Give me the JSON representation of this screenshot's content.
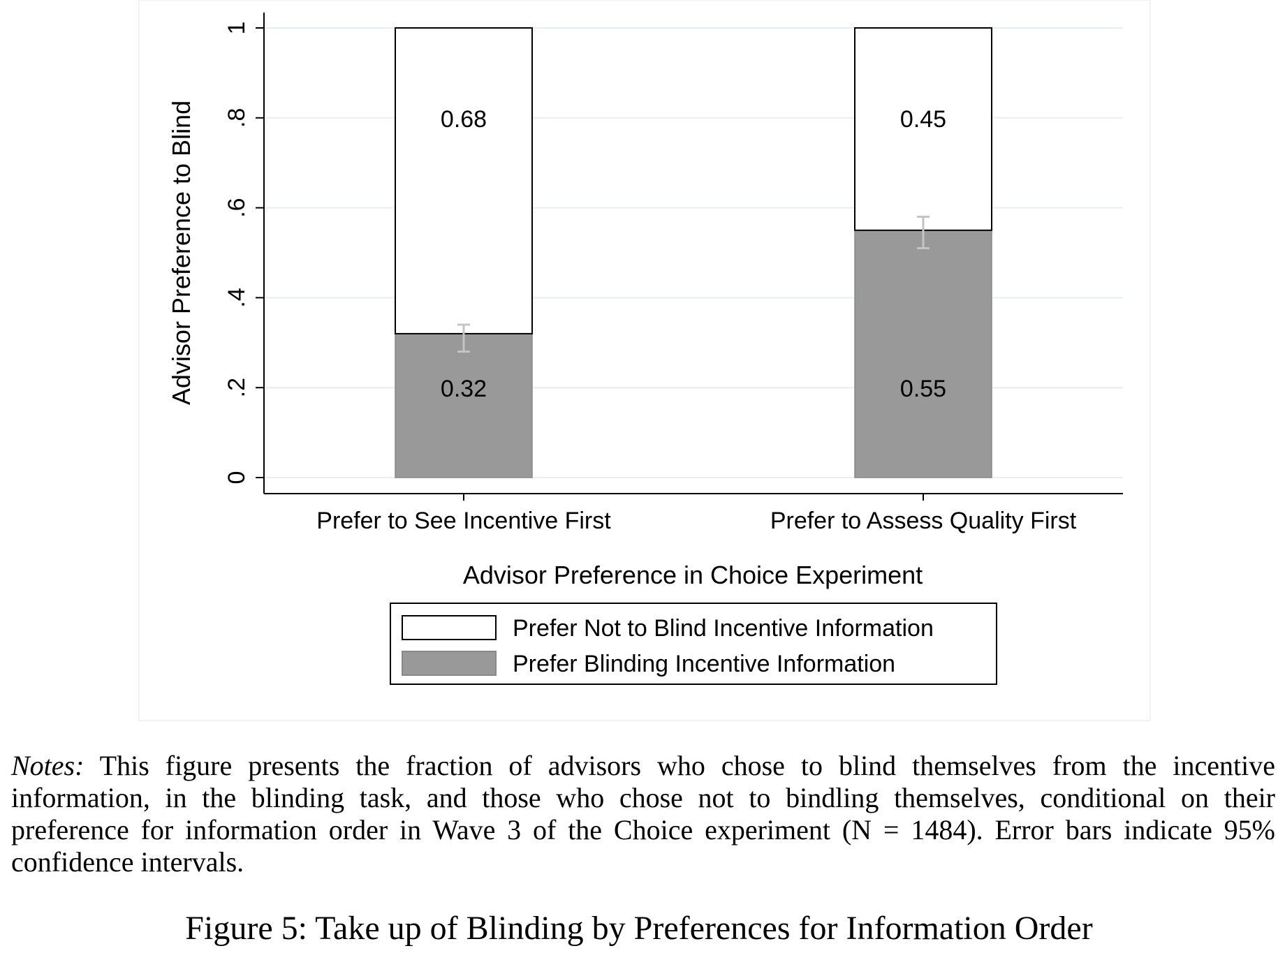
{
  "chart_data": {
    "type": "bar",
    "stacked": true,
    "categories": [
      "Prefer to See Incentive First",
      "Prefer to Assess Quality First"
    ],
    "series": [
      {
        "name": "Prefer Blinding Incentive Information",
        "values": [
          0.32,
          0.55
        ],
        "color": "#999999"
      },
      {
        "name": "Prefer Not to Blind Incentive Information",
        "values": [
          0.68,
          0.45
        ],
        "color": "#ffffff"
      }
    ],
    "error_bars": [
      {
        "category": "Prefer to See Incentive First",
        "low": 0.28,
        "high": 0.34
      },
      {
        "category": "Prefer to Assess Quality First",
        "low": 0.51,
        "high": 0.58
      }
    ],
    "data_labels": {
      "bottom": [
        "0.32",
        "0.55"
      ],
      "top": [
        "0.68",
        "0.45"
      ]
    },
    "xlabel": "Advisor Preference in Choice Experiment",
    "ylabel": "Advisor Preference to Blind",
    "ylim": [
      0,
      1
    ],
    "yticks": [
      0,
      0.2,
      0.4,
      0.6,
      0.8,
      1
    ],
    "ytick_labels": [
      "0",
      ".2",
      ".4",
      ".6",
      ".8",
      "1"
    ],
    "grid": true,
    "legend_position": "bottom-center"
  },
  "notes": {
    "label": "Notes:",
    "text": " This figure presents the fraction of advisors who chose to blind themselves from the incentive information, in the blinding task, and those who chose not to bindling themselves, conditional on their preference for information order in Wave 3 of the Choice experiment (N = 1484). Error bars indicate 95% confidence intervals."
  },
  "caption": "Figure 5: Take up of Blinding by Preferences for Information Order"
}
